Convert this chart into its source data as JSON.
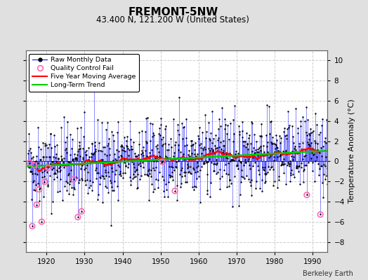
{
  "title": "FREMONT-5NW",
  "subtitle": "43.400 N, 121.200 W (United States)",
  "ylabel": "Temperature Anomaly (°C)",
  "credit": "Berkeley Earth",
  "year_start": 1915,
  "year_end": 1993,
  "ylim": [
    -9,
    11
  ],
  "yticks": [
    -8,
    -6,
    -4,
    -2,
    0,
    2,
    4,
    6,
    8,
    10
  ],
  "xlim": [
    1914.5,
    1994
  ],
  "xticks": [
    1920,
    1930,
    1940,
    1950,
    1960,
    1970,
    1980,
    1990
  ],
  "raw_line_color": "#3333FF",
  "raw_dot_color": "#000000",
  "qc_fail_color": "#FF69B4",
  "moving_avg_color": "#FF0000",
  "trend_color": "#00CC00",
  "background_color": "#E0E0E0",
  "plot_bg_color": "#FFFFFF",
  "grid_color": "#CCCCCC",
  "seed": 42,
  "noise_std": 1.9,
  "trend_slope": 0.008
}
